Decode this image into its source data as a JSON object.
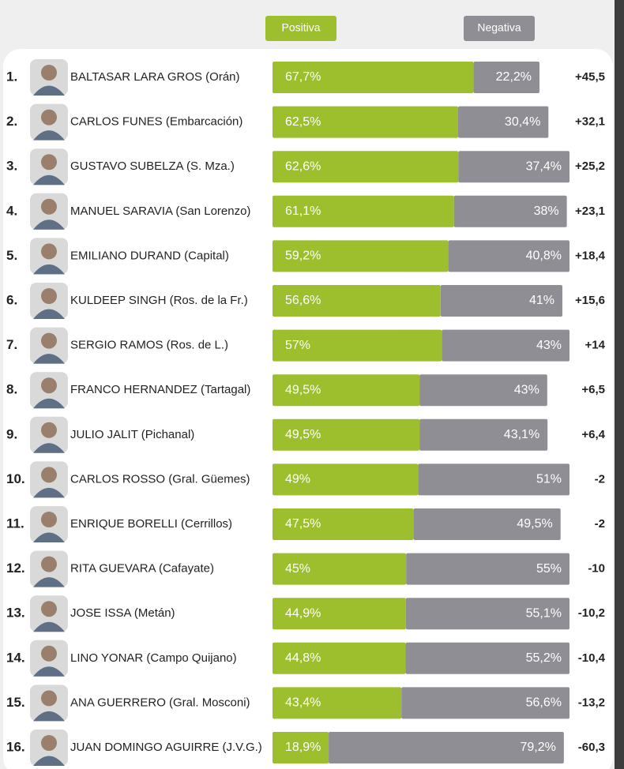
{
  "chart_data": {
    "type": "bar",
    "stacked": true,
    "orientation": "horizontal",
    "ranks": [
      "1.",
      "2.",
      "3.",
      "4.",
      "5.",
      "6.",
      "7.",
      "8.",
      "9.",
      "10.",
      "11.",
      "12.",
      "13.",
      "14.",
      "15.",
      "16."
    ],
    "categories": [
      "BALTASAR LARA GROS (Orán)",
      "CARLOS FUNES (Embarcación)",
      "GUSTAVO SUBELZA (S. Mza.)",
      "MANUEL SARAVIA (San Lorenzo)",
      "EMILIANO DURAND (Capital)",
      "KULDEEP SINGH (Ros. de la Fr.)",
      "SERGIO RAMOS (Ros. de L.)",
      "FRANCO HERNANDEZ (Tartagal)",
      "JULIO JALIT (Pichanal)",
      "CARLOS ROSSO (Gral. Güemes)",
      "ENRIQUE BORELLI (Cerrillos)",
      "RITA GUEVARA (Cafayate)",
      "JOSE ISSA (Metán)",
      "LINO YONAR (Campo Quijano)",
      "ANA GUERRERO (Gral. Mosconi)",
      "JUAN DOMINGO AGUIRRE (J.V.G.)"
    ],
    "series": [
      {
        "name": "Positiva",
        "color": "#9dbf2e",
        "values": [
          67.7,
          62.5,
          62.6,
          61.1,
          59.2,
          56.6,
          57,
          49.5,
          49.5,
          49,
          47.5,
          45,
          44.9,
          44.8,
          43.4,
          18.9
        ],
        "value_labels": [
          "67,7%",
          "62,5%",
          "62,6%",
          "61,1%",
          "59,2%",
          "56,6%",
          "57%",
          "49,5%",
          "49,5%",
          "49%",
          "47,5%",
          "45%",
          "44,9%",
          "44,8%",
          "43,4%",
          "18,9%"
        ]
      },
      {
        "name": "Negativa",
        "color": "#8f8e94",
        "values": [
          22.2,
          30.4,
          37.4,
          38,
          40.8,
          41,
          43,
          43,
          43.1,
          51,
          49.5,
          55,
          55.1,
          55.2,
          56.6,
          79.2
        ],
        "value_labels": [
          "22,2%",
          "30,4%",
          "37,4%",
          "38%",
          "40,8%",
          "41%",
          "43%",
          "43%",
          "43,1%",
          "51%",
          "49,5%",
          "55%",
          "55,1%",
          "55,2%",
          "56,6%",
          "79,2%"
        ]
      }
    ],
    "net": {
      "values": [
        45.5,
        32.1,
        25.2,
        23.1,
        18.4,
        15.6,
        14,
        6.5,
        6.4,
        -2,
        -2,
        -10,
        -10.2,
        -10.4,
        -13.2,
        -60.3
      ],
      "value_labels": [
        "+45,5",
        "+32,1",
        "+25,2",
        "+23,1",
        "+18,4",
        "+15,6",
        "+14",
        "+6,5",
        "+6,4",
        "-2",
        "-2",
        "-10",
        "-10,2",
        "-10,4",
        "-13,2",
        "-60,3"
      ]
    },
    "xlim": [
      0,
      100
    ]
  }
}
